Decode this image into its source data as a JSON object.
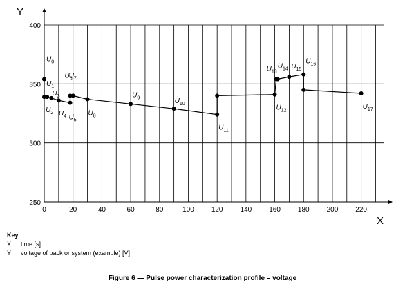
{
  "chart_data": {
    "type": "line",
    "xlabel": "X",
    "ylabel": "Y",
    "xlim": [
      0,
      236
    ],
    "ylim": [
      250,
      400
    ],
    "x_ticks": [
      0,
      20,
      40,
      60,
      80,
      100,
      120,
      140,
      160,
      180,
      200,
      220
    ],
    "y_ticks": [
      250,
      300,
      350,
      400
    ],
    "x_grid_step": 10,
    "grid": true,
    "points": [
      {
        "label": "U",
        "sub": "0",
        "x": 0,
        "y": 354
      },
      {
        "label": "U",
        "sub": "1",
        "x": 0,
        "y": 339
      },
      {
        "label": "U",
        "sub": "2",
        "x": 2,
        "y": 339
      },
      {
        "label": "U",
        "sub": "3",
        "x": 5,
        "y": 338
      },
      {
        "label": "U",
        "sub": "4",
        "x": 10,
        "y": 336
      },
      {
        "label": "U",
        "sub": "5",
        "x": 18,
        "y": 334
      },
      {
        "label": "U",
        "sub": "6",
        "x": 18,
        "y": 340
      },
      {
        "label": "U",
        "sub": "7",
        "x": 20,
        "y": 340
      },
      {
        "label": "U",
        "sub": "8",
        "x": 30,
        "y": 337
      },
      {
        "label": "U",
        "sub": "9",
        "x": 60,
        "y": 333
      },
      {
        "label": "U",
        "sub": "10",
        "x": 90,
        "y": 329
      },
      {
        "label": "U",
        "sub": "11",
        "x": 120,
        "y": 324
      },
      {
        "label": "U",
        "sub": "",
        "x": 120,
        "y": 340
      },
      {
        "label": "U",
        "sub": "12",
        "x": 160,
        "y": 341
      },
      {
        "label": "U",
        "sub": "13",
        "x": 161,
        "y": 354
      },
      {
        "label": "U",
        "sub": "14",
        "x": 162,
        "y": 354
      },
      {
        "label": "U",
        "sub": "15",
        "x": 170,
        "y": 356
      },
      {
        "label": "U",
        "sub": "16",
        "x": 180,
        "y": 358
      },
      {
        "label": "U",
        "sub": "",
        "x": 180,
        "y": 345
      },
      {
        "label": "U",
        "sub": "17",
        "x": 220,
        "y": 342
      }
    ]
  },
  "key": {
    "title": "Key",
    "items": [
      {
        "symbol": "X",
        "text": "time [s]"
      },
      {
        "symbol": "Y",
        "text": "voltage of pack or system (example) [V]"
      }
    ]
  },
  "caption": "Figure 6 — Pulse power characterization profile – voltage"
}
